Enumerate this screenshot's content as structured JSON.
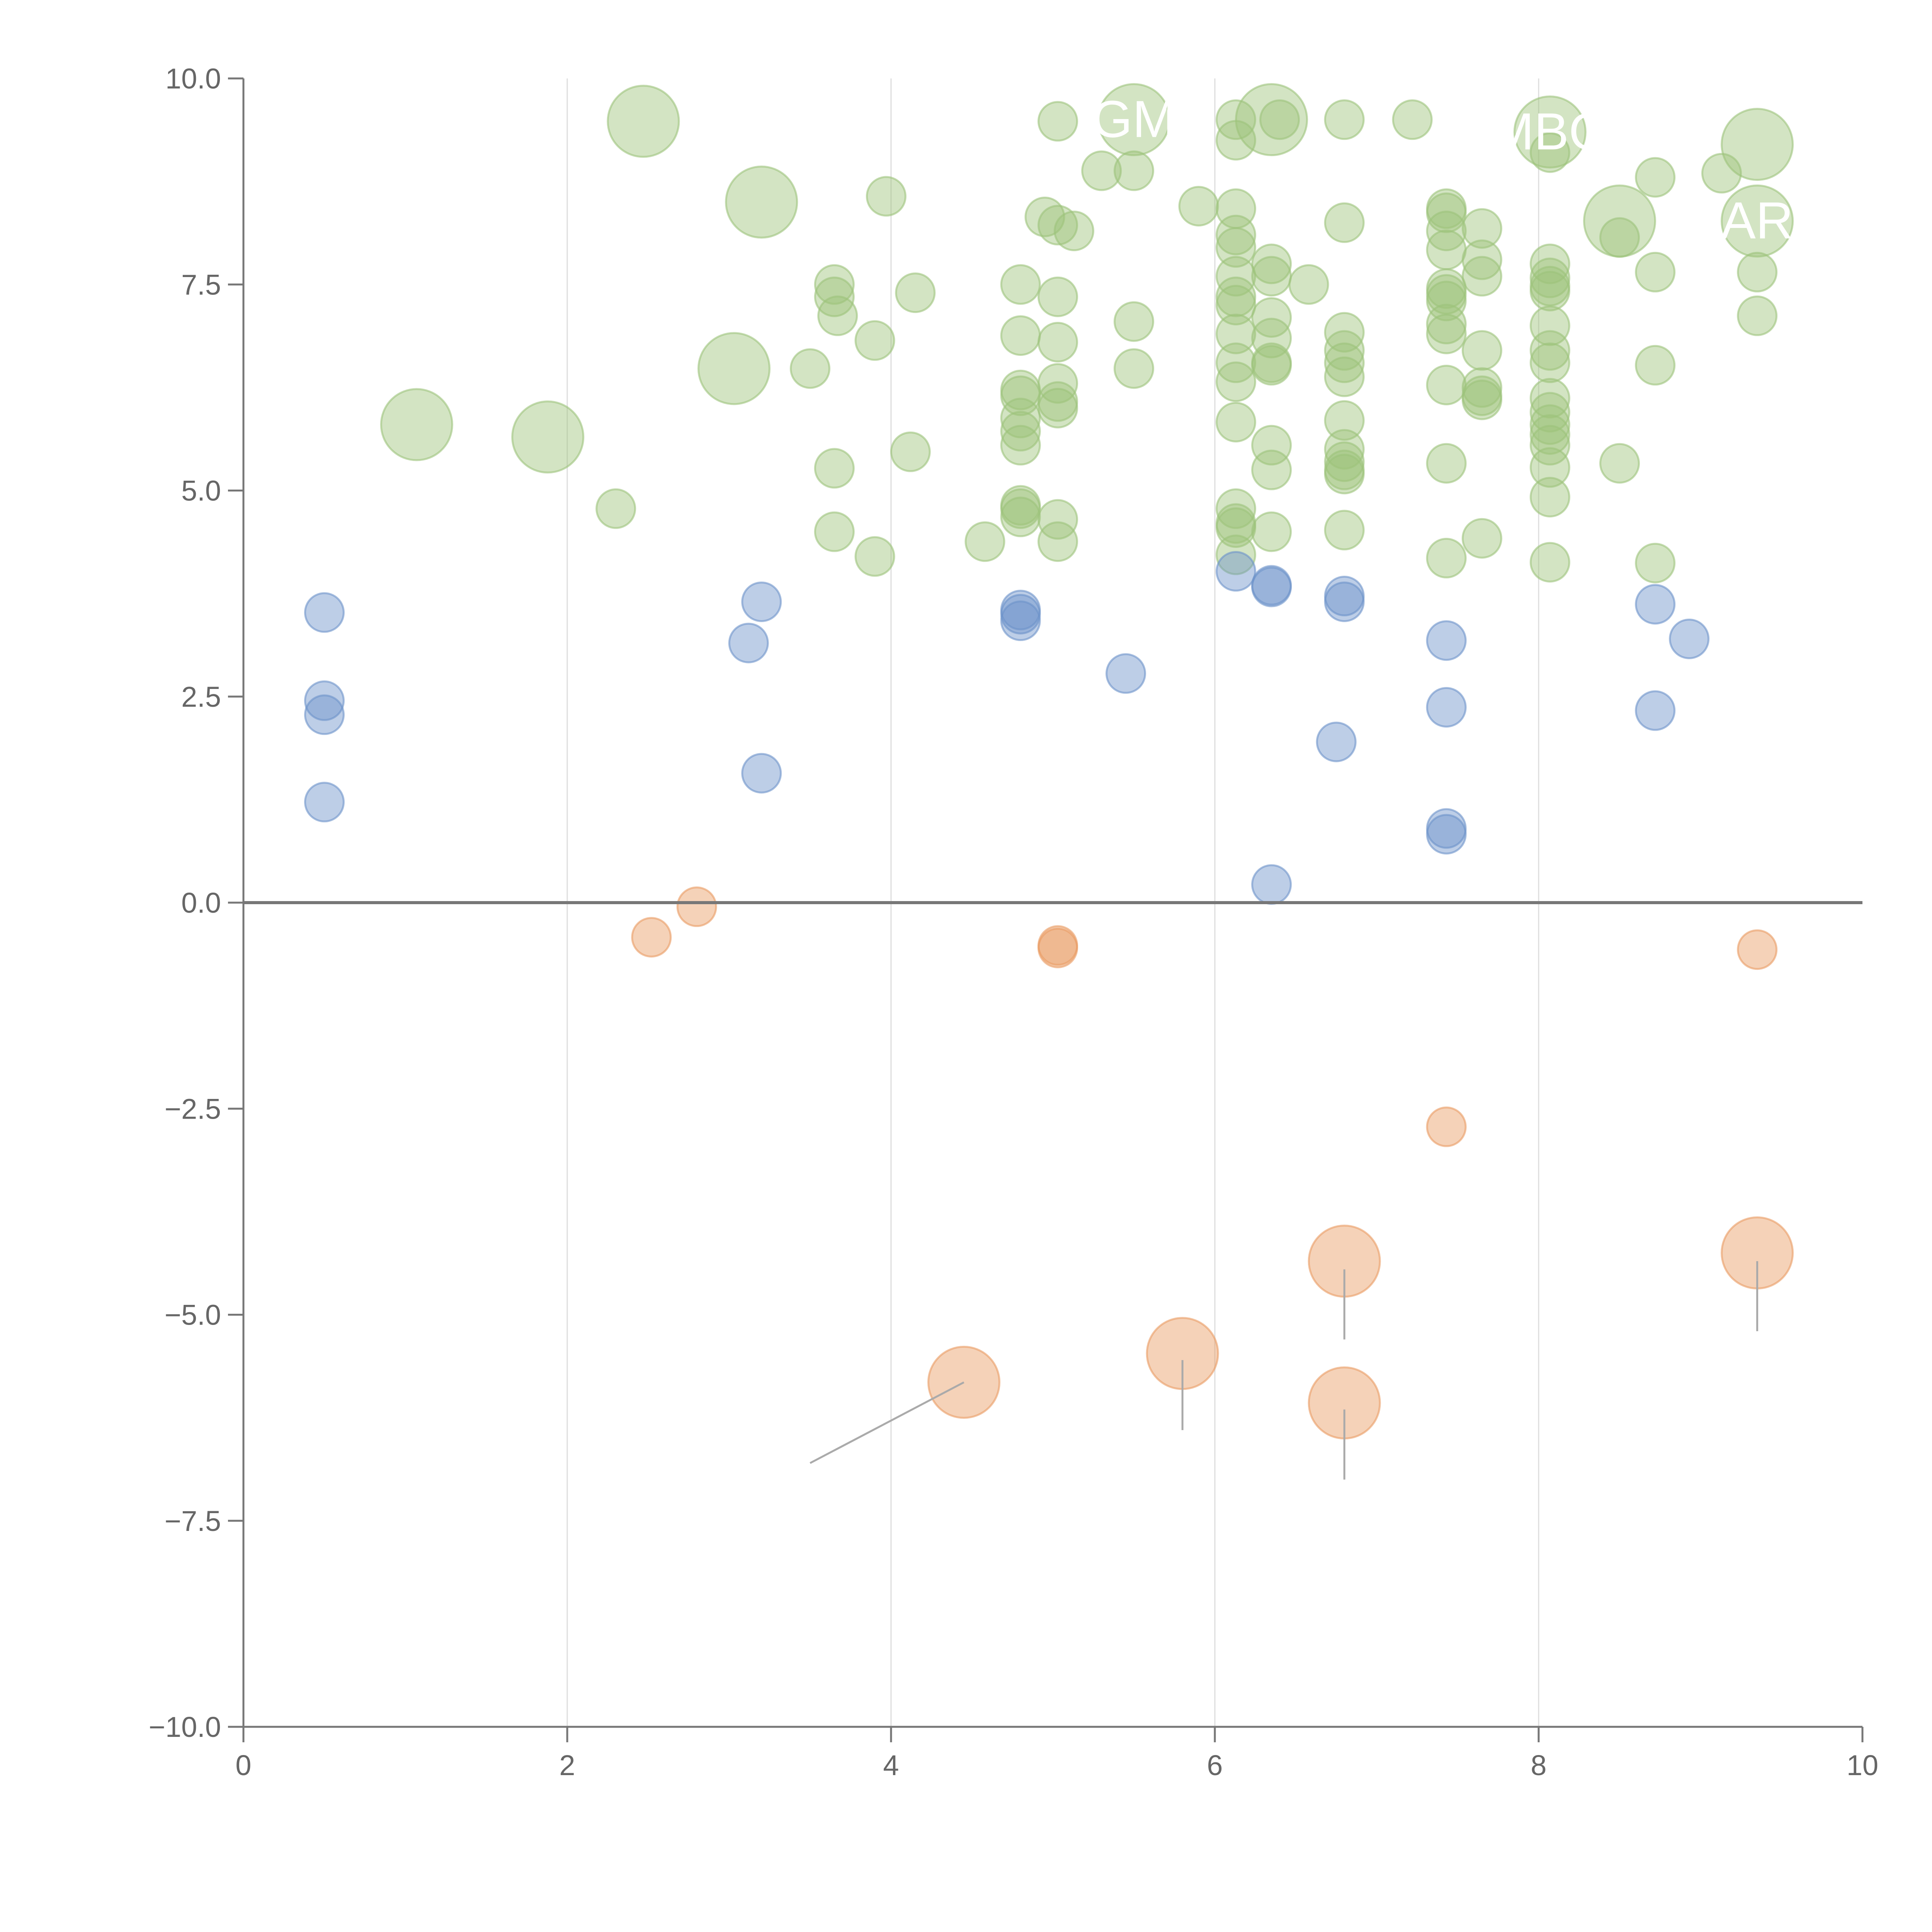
{
  "chart_data": {
    "type": "scatter",
    "title": "",
    "xlabel": "",
    "ylabel": "",
    "xlim": [
      0,
      10
    ],
    "ylim": [
      -10,
      10
    ],
    "x_ticks": [
      {
        "value": 0,
        "label": "0"
      },
      {
        "value": 2,
        "label": "2"
      },
      {
        "value": 4,
        "label": "4"
      },
      {
        "value": 6,
        "label": "6"
      },
      {
        "value": 8,
        "label": "8"
      },
      {
        "value": 10,
        "label": "10"
      }
    ],
    "y_ticks": [
      {
        "value": 10,
        "label": "10.0"
      },
      {
        "value": 7.5,
        "label": "7.5"
      },
      {
        "value": 5,
        "label": "5.0"
      },
      {
        "value": 2.5,
        "label": "2.5"
      },
      {
        "value": 0,
        "label": "0.0"
      },
      {
        "value": -2.5,
        "label": "−2.5"
      },
      {
        "value": -5,
        "label": "−5.0"
      },
      {
        "value": -7.5,
        "label": "−7.5"
      },
      {
        "value": -10,
        "label": "−10.0"
      }
    ],
    "grid": "vertical",
    "zero_line": true,
    "colors": {
      "green": "#9dc37b",
      "blue": "#6d93c9",
      "orange": "#e99b62"
    },
    "series": [
      {
        "color": "green",
        "points": [
          [
            2.47,
            9.48,
            3
          ],
          [
            3.2,
            8.5,
            3
          ],
          [
            1.07,
            5.8,
            3
          ],
          [
            1.88,
            5.65,
            3
          ],
          [
            3.03,
            6.48,
            3
          ],
          [
            5.5,
            9.5,
            3
          ],
          [
            6.35,
            9.5,
            3
          ],
          [
            8.07,
            9.35,
            3
          ],
          [
            8.5,
            8.27,
            3
          ],
          [
            9.35,
            9.2,
            3
          ],
          [
            9.35,
            8.27,
            3
          ],
          [
            2.3,
            4.78,
            1
          ],
          [
            3.5,
            6.48,
            1
          ],
          [
            3.65,
            7.5,
            1
          ],
          [
            3.65,
            7.35,
            1
          ],
          [
            3.67,
            7.12,
            1
          ],
          [
            3.65,
            5.27,
            1
          ],
          [
            3.65,
            4.5,
            1
          ],
          [
            3.9,
            6.82,
            1
          ],
          [
            3.9,
            4.2,
            1
          ],
          [
            3.97,
            8.57,
            1
          ],
          [
            4.12,
            5.47,
            1
          ],
          [
            4.15,
            7.4,
            1
          ],
          [
            4.58,
            4.38,
            1
          ],
          [
            4.8,
            7.5,
            1
          ],
          [
            4.8,
            6.88,
            1
          ],
          [
            4.8,
            6.22,
            1
          ],
          [
            4.8,
            6.15,
            1
          ],
          [
            4.8,
            5.88,
            1
          ],
          [
            4.8,
            5.72,
            1
          ],
          [
            4.8,
            5.55,
            1
          ],
          [
            4.8,
            4.82,
            1
          ],
          [
            4.8,
            4.78,
            1
          ],
          [
            4.8,
            4.68,
            1
          ],
          [
            4.95,
            8.32,
            1
          ],
          [
            5.03,
            9.48,
            1
          ],
          [
            5.03,
            8.22,
            1
          ],
          [
            5.03,
            7.35,
            1
          ],
          [
            5.03,
            6.8,
            1
          ],
          [
            5.03,
            6.3,
            1
          ],
          [
            5.03,
            6.08,
            1
          ],
          [
            5.03,
            6.0,
            1
          ],
          [
            5.03,
            4.65,
            1
          ],
          [
            5.03,
            4.38,
            1
          ],
          [
            5.13,
            8.15,
            1
          ],
          [
            5.3,
            8.88,
            1
          ],
          [
            5.5,
            8.88,
            1
          ],
          [
            5.5,
            7.05,
            1
          ],
          [
            5.5,
            6.48,
            1
          ],
          [
            5.9,
            8.45,
            1
          ],
          [
            6.13,
            9.5,
            1
          ],
          [
            6.13,
            9.25,
            1
          ],
          [
            6.13,
            8.42,
            1
          ],
          [
            6.13,
            8.1,
            1
          ],
          [
            6.13,
            7.95,
            1
          ],
          [
            6.13,
            7.6,
            1
          ],
          [
            6.13,
            7.35,
            1
          ],
          [
            6.13,
            7.25,
            1
          ],
          [
            6.13,
            6.9,
            1
          ],
          [
            6.13,
            6.55,
            1
          ],
          [
            6.13,
            6.32,
            1
          ],
          [
            6.13,
            5.83,
            1
          ],
          [
            6.13,
            4.78,
            1
          ],
          [
            6.13,
            4.6,
            1
          ],
          [
            6.13,
            4.55,
            1
          ],
          [
            6.13,
            4.22,
            1
          ],
          [
            6.35,
            7.75,
            1
          ],
          [
            6.35,
            7.6,
            1
          ],
          [
            6.35,
            7.1,
            1
          ],
          [
            6.35,
            6.85,
            1
          ],
          [
            6.35,
            6.55,
            1
          ],
          [
            6.35,
            6.52,
            1
          ],
          [
            6.35,
            5.55,
            1
          ],
          [
            6.35,
            5.25,
            1
          ],
          [
            6.35,
            4.5,
            1
          ],
          [
            6.4,
            9.5,
            1
          ],
          [
            6.58,
            7.5,
            1
          ],
          [
            6.8,
            9.5,
            1
          ],
          [
            6.8,
            8.25,
            1
          ],
          [
            6.8,
            6.92,
            1
          ],
          [
            6.8,
            6.7,
            1
          ],
          [
            6.8,
            6.55,
            1
          ],
          [
            6.8,
            6.38,
            1
          ],
          [
            6.8,
            5.85,
            1
          ],
          [
            6.8,
            5.5,
            1
          ],
          [
            6.8,
            5.35,
            1
          ],
          [
            6.8,
            5.25,
            1
          ],
          [
            6.8,
            5.2,
            1
          ],
          [
            6.8,
            4.52,
            1
          ],
          [
            7.22,
            9.5,
            1
          ],
          [
            7.43,
            8.42,
            1
          ],
          [
            7.43,
            8.37,
            1
          ],
          [
            7.43,
            8.15,
            1
          ],
          [
            7.43,
            7.92,
            1
          ],
          [
            7.43,
            7.45,
            1
          ],
          [
            7.43,
            7.38,
            1
          ],
          [
            7.43,
            7.3,
            1
          ],
          [
            7.43,
            7.02,
            1
          ],
          [
            7.43,
            6.9,
            1
          ],
          [
            7.43,
            6.28,
            1
          ],
          [
            7.43,
            5.33,
            1
          ],
          [
            7.43,
            4.18,
            1
          ],
          [
            7.65,
            8.18,
            1
          ],
          [
            7.65,
            7.8,
            1
          ],
          [
            7.65,
            7.6,
            1
          ],
          [
            7.65,
            6.7,
            1
          ],
          [
            7.65,
            6.25,
            1
          ],
          [
            7.65,
            6.15,
            1
          ],
          [
            7.65,
            6.1,
            1
          ],
          [
            7.65,
            4.42,
            1
          ],
          [
            8.07,
            9.1,
            1
          ],
          [
            8.07,
            7.75,
            1
          ],
          [
            8.07,
            7.58,
            1
          ],
          [
            8.07,
            7.48,
            1
          ],
          [
            8.07,
            7.42,
            1
          ],
          [
            8.07,
            7.0,
            1
          ],
          [
            8.07,
            6.7,
            1
          ],
          [
            8.07,
            6.55,
            1
          ],
          [
            8.07,
            6.12,
            1
          ],
          [
            8.07,
            5.95,
            1
          ],
          [
            8.07,
            5.8,
            1
          ],
          [
            8.07,
            5.68,
            1
          ],
          [
            8.07,
            5.55,
            1
          ],
          [
            8.07,
            5.28,
            1
          ],
          [
            8.07,
            4.92,
            1
          ],
          [
            8.07,
            4.13,
            1
          ],
          [
            8.5,
            5.33,
            1
          ],
          [
            8.5,
            8.07,
            1
          ],
          [
            8.72,
            8.8,
            1
          ],
          [
            8.72,
            7.65,
            1
          ],
          [
            8.72,
            6.52,
            1
          ],
          [
            8.72,
            4.12,
            1
          ],
          [
            9.13,
            8.85,
            1
          ],
          [
            9.35,
            7.65,
            1
          ],
          [
            9.35,
            7.12,
            1
          ]
        ]
      },
      {
        "color": "blue",
        "points": [
          [
            0.5,
            3.52,
            1
          ],
          [
            0.5,
            2.45,
            1
          ],
          [
            0.5,
            2.28,
            1
          ],
          [
            0.5,
            1.22,
            1
          ],
          [
            3.12,
            3.15,
            1
          ],
          [
            3.2,
            3.65,
            1
          ],
          [
            3.2,
            1.57,
            1
          ],
          [
            4.8,
            3.55,
            1
          ],
          [
            4.8,
            3.5,
            1
          ],
          [
            4.8,
            3.42,
            1
          ],
          [
            5.45,
            2.78,
            1
          ],
          [
            6.13,
            4.02,
            1
          ],
          [
            6.35,
            3.85,
            1
          ],
          [
            6.35,
            3.83,
            1
          ],
          [
            6.35,
            0.22,
            1
          ],
          [
            6.75,
            1.95,
            1
          ],
          [
            6.8,
            3.72,
            1
          ],
          [
            6.8,
            3.65,
            1
          ],
          [
            7.43,
            3.18,
            1
          ],
          [
            7.43,
            2.37,
            1
          ],
          [
            7.43,
            0.9,
            1
          ],
          [
            7.43,
            0.83,
            1
          ],
          [
            8.72,
            3.62,
            1
          ],
          [
            8.72,
            2.33,
            1
          ],
          [
            8.93,
            3.2,
            1
          ]
        ]
      },
      {
        "color": "orange",
        "points": [
          [
            2.52,
            -0.42,
            1
          ],
          [
            2.8,
            -0.05,
            1
          ],
          [
            5.03,
            -0.52,
            1
          ],
          [
            5.03,
            -0.55,
            1
          ],
          [
            7.43,
            -2.72,
            1
          ],
          [
            9.35,
            -0.57,
            1
          ],
          [
            4.45,
            -5.82,
            3
          ],
          [
            5.8,
            -5.47,
            3
          ],
          [
            6.8,
            -4.35,
            3
          ],
          [
            6.8,
            -6.07,
            3
          ],
          [
            9.35,
            -4.25,
            3
          ]
        ]
      }
    ],
    "labels": [
      {
        "text": "GM",
        "x": 5.5,
        "y": 9.5
      },
      {
        "text": "MBO",
        "x": 8.07,
        "y": 9.35
      },
      {
        "text": "AR",
        "x": 9.35,
        "y": 8.27
      }
    ]
  }
}
